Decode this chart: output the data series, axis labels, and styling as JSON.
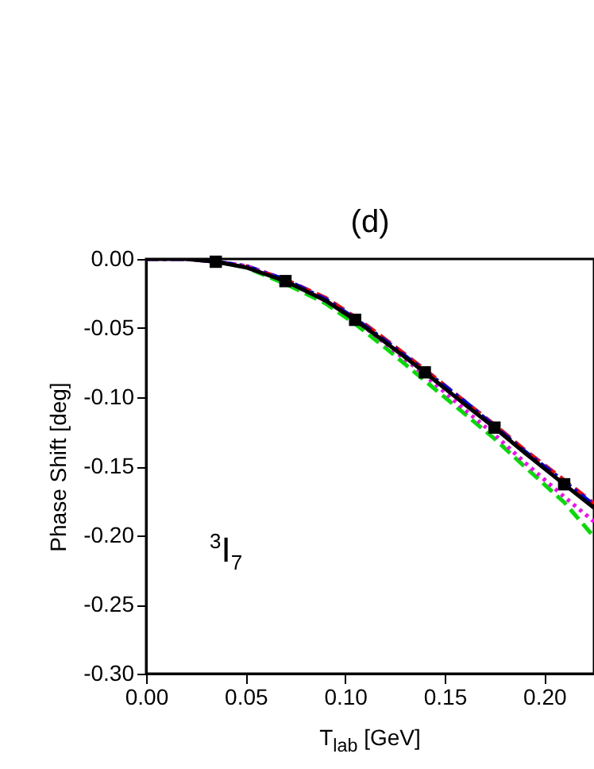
{
  "chart_data": {
    "type": "line",
    "title": "(d)",
    "xlabel": "T$_{lab}$ [GeV]",
    "ylabel": "Phase Shift [deg]",
    "annotations": [
      "$^{3}$I$_{7}$"
    ],
    "x": [
      0,
      0.02,
      0.035,
      0.05,
      0.07,
      0.09,
      0.105,
      0.12,
      0.14,
      0.16,
      0.175,
      0.19,
      0.21,
      0.225
    ],
    "series": [
      {
        "color": "#ff0000",
        "line_style": "dashed",
        "values": [
          null,
          null,
          null,
          -0.005,
          -0.015,
          -0.028,
          -0.042,
          -0.058,
          -0.08,
          -0.103,
          -0.12,
          -0.138,
          -0.16,
          -0.177
        ]
      },
      {
        "color": "#0000ff",
        "line_style": "dashdot",
        "values": [
          0,
          0,
          -0.002,
          -0.005,
          -0.015,
          -0.029,
          -0.043,
          -0.059,
          -0.081,
          -0.103,
          -0.121,
          -0.139,
          -0.161,
          -0.178
        ]
      },
      {
        "color": "#00dd00",
        "line_style": "dashed",
        "values": [
          null,
          null,
          -0.002,
          -0.006,
          -0.018,
          -0.032,
          -0.047,
          -0.064,
          -0.088,
          -0.112,
          -0.13,
          -0.15,
          -0.176,
          -0.201
        ]
      },
      {
        "color": "#ff00ff",
        "line_style": "dotted",
        "values": [
          0,
          0,
          -0.002,
          -0.005,
          -0.016,
          -0.03,
          -0.044,
          -0.061,
          -0.084,
          -0.109,
          -0.127,
          -0.147,
          -0.172,
          -0.19
        ]
      },
      {
        "color": "#000000",
        "line_style": "solid",
        "values": [
          0,
          0,
          -0.002,
          -0.006,
          -0.016,
          -0.03,
          -0.044,
          -0.06,
          -0.082,
          -0.105,
          -0.122,
          -0.14,
          -0.163,
          -0.18
        ]
      },
      {
        "type": "scatter",
        "color": "#000000",
        "marker": "square",
        "x": [
          0.035,
          0.07,
          0.105,
          0.14,
          0.175,
          0.21
        ],
        "values": [
          -0.002,
          -0.016,
          -0.044,
          -0.082,
          -0.122,
          -0.163
        ]
      }
    ],
    "xlim": [
      0,
      0.225
    ],
    "ylim": [
      -0.3,
      0.0
    ],
    "xticks": [
      {
        "value": 0,
        "label": "0.00"
      },
      {
        "value": 0.05,
        "label": "0.05"
      },
      {
        "value": 0.1,
        "label": "0.10"
      },
      {
        "value": 0.15,
        "label": "0.15"
      },
      {
        "value": 0.2,
        "label": "0.20"
      }
    ],
    "yticks": [
      {
        "value": -0.3,
        "label": "-0.30"
      },
      {
        "value": -0.25,
        "label": "-0.25"
      },
      {
        "value": -0.2,
        "label": "-0.20"
      },
      {
        "value": -0.15,
        "label": "-0.15"
      },
      {
        "value": -0.1,
        "label": "-0.10"
      },
      {
        "value": -0.05,
        "label": "-0.05"
      },
      {
        "value": 0,
        "label": "0.00"
      }
    ],
    "grid": false
  }
}
